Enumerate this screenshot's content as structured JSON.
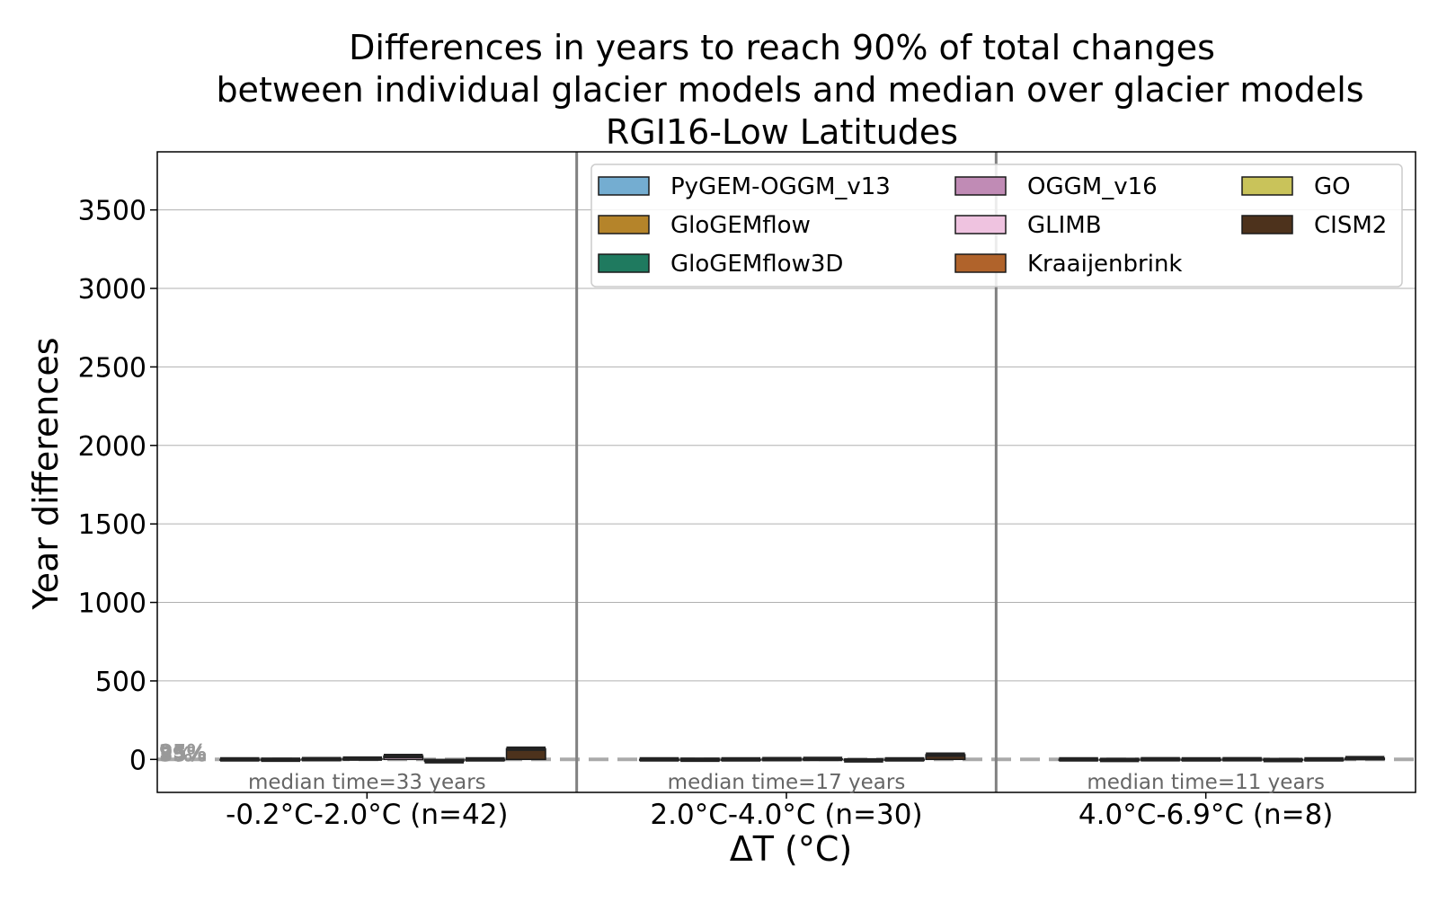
{
  "chart_data": {
    "type": "bar",
    "title_lines": [
      "Differences in years to reach 90% of total changes",
      "between individual glacier models and median over glacier models",
      "RGI16-Low Latitudes"
    ],
    "xlabel": "ΔT (°C)",
    "ylabel": "Year differences",
    "ylim": [
      -210,
      3870
    ],
    "yticks": [
      0,
      500,
      1000,
      1500,
      2000,
      2500,
      3000,
      3500
    ],
    "grid": "horizontal",
    "legend_position": "top-right",
    "legend_columns": 3,
    "categories": [
      "-0.2°C-2.0°C (n=42)",
      "2.0°C-4.0°C (n=30)",
      "4.0°C-6.9°C (n=8)"
    ],
    "median_notes": [
      "median time=33 years",
      "median time=17 years",
      "median time=11 years"
    ],
    "percentile_labels": [
      "5%",
      "25%",
      "75%",
      "95%"
    ],
    "reference_line": 0,
    "series": [
      {
        "name": "PyGEM-OGGM_v13",
        "color": "#74add1",
        "values": [
          0,
          0,
          0
        ]
      },
      {
        "name": "GloGEMflow",
        "color": "#b5842a",
        "values": [
          -2,
          -2,
          -3
        ]
      },
      {
        "name": "GloGEMflow3D",
        "color": "#1f7a5f",
        "values": [
          2,
          0,
          1
        ]
      },
      {
        "name": "OGGM_v16",
        "color": "#c08bb5",
        "values": [
          5,
          2,
          0
        ]
      },
      {
        "name": "GLIMB",
        "color": "#efc3e0",
        "values": [
          22,
          3,
          1
        ]
      },
      {
        "name": "Kraaijenbrink",
        "color": "#b0632b",
        "values": [
          -12,
          -6,
          -4
        ]
      },
      {
        "name": "GO",
        "color": "#c9c35a",
        "values": [
          0,
          0,
          0
        ]
      },
      {
        "name": "CISM2",
        "color": "#4d321c",
        "values": [
          68,
          30,
          8
        ]
      }
    ]
  }
}
